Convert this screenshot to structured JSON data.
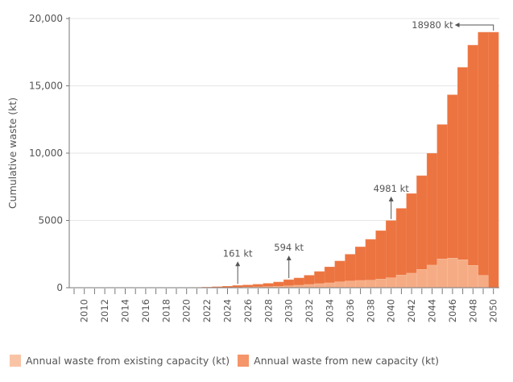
{
  "chart_data": {
    "type": "bar",
    "title": "",
    "xlabel": "",
    "ylabel": "Cumulative waste (kt)",
    "ylim": [
      0,
      20000
    ],
    "yticks": [
      0,
      5000,
      10000,
      15000,
      20000
    ],
    "ytick_labels": [
      "0",
      "5000",
      "10,000",
      "15,000",
      "20,000"
    ],
    "grid": "horizontal",
    "legend_position": "bottom-left",
    "categories": [
      2009,
      2010,
      2011,
      2012,
      2013,
      2014,
      2015,
      2016,
      2017,
      2018,
      2019,
      2020,
      2021,
      2022,
      2023,
      2024,
      2025,
      2026,
      2027,
      2028,
      2029,
      2030,
      2031,
      2032,
      2033,
      2034,
      2035,
      2036,
      2037,
      2038,
      2039,
      2040,
      2041,
      2042,
      2043,
      2044,
      2045,
      2046,
      2047,
      2048,
      2049,
      2050
    ],
    "xtick_labels": [
      "2010",
      "2012",
      "2014",
      "2016",
      "2018",
      "2020",
      "2022",
      "2024",
      "2026",
      "2028",
      "2030",
      "2032",
      "2034",
      "2036",
      "2038",
      "2040",
      "2042",
      "2044",
      "2046",
      "2048",
      "2050"
    ],
    "series": [
      {
        "name": "Annual waste from new capacity (kt)",
        "color": "#ec7440",
        "legend_color": "#f4956a",
        "values": [
          0,
          0,
          0,
          0,
          0,
          0,
          0,
          0,
          0,
          0,
          2,
          8,
          18,
          35,
          65,
          105,
          161,
          200,
          250,
          320,
          420,
          594,
          720,
          920,
          1200,
          1540,
          1980,
          2480,
          3030,
          3590,
          4230,
          4981,
          5890,
          6990,
          8320,
          9980,
          12120,
          14330,
          16370,
          18020,
          18980,
          18980
        ]
      },
      {
        "name": "Annual waste from existing capacity (kt)",
        "color": "#f5ac85",
        "legend_color": "#f9c4a6",
        "values": [
          0,
          0,
          0,
          0,
          0,
          0,
          0,
          0,
          0,
          0,
          0,
          2,
          4,
          6,
          10,
          15,
          25,
          40,
          60,
          80,
          100,
          140,
          180,
          240,
          300,
          360,
          440,
          500,
          540,
          560,
          640,
          740,
          940,
          1080,
          1360,
          1680,
          2140,
          2200,
          2080,
          1660,
          920,
          0
        ]
      }
    ],
    "annotations": [
      {
        "year": 2025,
        "text": "161 kt"
      },
      {
        "year": 2030,
        "text": "594 kt"
      },
      {
        "year": 2040,
        "text": "4981 kt"
      },
      {
        "year": 2050,
        "text": "18980 kt"
      }
    ]
  }
}
